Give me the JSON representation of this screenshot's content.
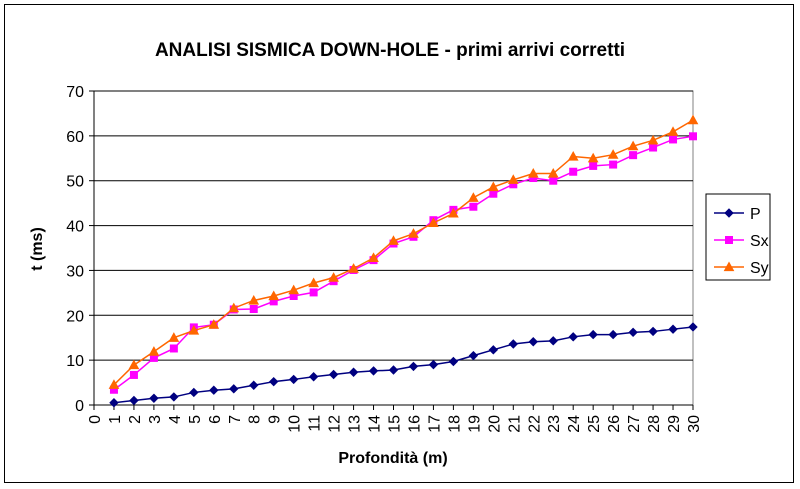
{
  "chart_data": {
    "type": "line",
    "title": "ANALISI SISMICA DOWN-HOLE - primi arrivi corretti",
    "xlabel": "Profondità (m)",
    "ylabel": "t (ms)",
    "xlim": [
      0,
      30
    ],
    "ylim": [
      0,
      70
    ],
    "x_ticks": [
      0,
      1,
      2,
      3,
      4,
      5,
      6,
      7,
      8,
      9,
      10,
      11,
      12,
      13,
      14,
      15,
      16,
      17,
      18,
      19,
      20,
      21,
      22,
      23,
      24,
      25,
      26,
      27,
      28,
      29,
      30
    ],
    "y_ticks": [
      0,
      10,
      20,
      30,
      40,
      50,
      60,
      70
    ],
    "grid": "horizontal",
    "legend_position": "right",
    "x": [
      1,
      2,
      3,
      4,
      5,
      6,
      7,
      8,
      9,
      10,
      11,
      12,
      13,
      14,
      15,
      16,
      17,
      18,
      19,
      20,
      21,
      22,
      23,
      24,
      25,
      26,
      27,
      28,
      29,
      30
    ],
    "series": [
      {
        "name": "P",
        "color": "#000080",
        "marker": "diamond",
        "values": [
          0.5,
          1.0,
          1.5,
          1.8,
          2.8,
          3.3,
          3.6,
          4.4,
          5.2,
          5.7,
          6.3,
          6.8,
          7.3,
          7.6,
          7.8,
          8.6,
          9.0,
          9.7,
          11.0,
          12.3,
          13.6,
          14.1,
          14.3,
          15.2,
          15.7,
          15.7,
          16.2,
          16.4,
          16.9,
          17.4
        ]
      },
      {
        "name": "Sx",
        "color": "#FF00FF",
        "marker": "square",
        "values": [
          3.4,
          6.7,
          10.5,
          12.6,
          17.3,
          17.9,
          21.3,
          21.4,
          23.1,
          24.3,
          25.1,
          27.6,
          30.1,
          32.3,
          36.0,
          37.5,
          41.2,
          43.5,
          44.2,
          47.1,
          49.2,
          50.6,
          50.0,
          52.0,
          53.3,
          53.6,
          55.7,
          57.4,
          59.2,
          59.9
        ]
      },
      {
        "name": "Sy",
        "color": "#FF6600",
        "marker": "triangle",
        "values": [
          4.5,
          8.9,
          11.9,
          15.0,
          16.6,
          17.9,
          21.6,
          23.3,
          24.3,
          25.6,
          27.2,
          28.4,
          30.4,
          32.8,
          36.6,
          38.2,
          40.6,
          42.7,
          46.2,
          48.6,
          50.2,
          51.6,
          51.6,
          55.4,
          55.0,
          55.8,
          57.7,
          59.0,
          60.9,
          63.5
        ]
      }
    ]
  }
}
